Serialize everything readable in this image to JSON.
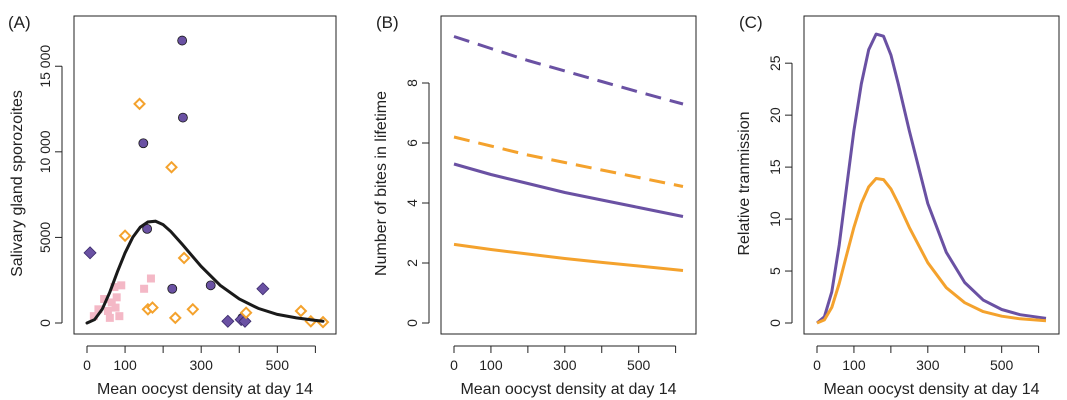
{
  "colors": {
    "purple": "#6a51a3",
    "orange": "#f4a22d",
    "pink": "#f4b8c6",
    "black": "#1a1a1a"
  },
  "chart_data": [
    {
      "type": "scatter",
      "panel": "(A)",
      "xlabel": "Mean oocyst density at day 14",
      "ylabel": "Salivary gland sporozoites",
      "xlim": [
        0,
        620
      ],
      "ylim": [
        0,
        17000
      ],
      "xticks": [
        0,
        100,
        300,
        500
      ],
      "xtick_labels": [
        "0",
        "100",
        "300",
        "500"
      ],
      "x_minor_ticks": [
        200,
        400,
        600
      ],
      "yticks": [
        0,
        5000,
        10000,
        15000
      ],
      "ytick_labels": [
        "0",
        "5000",
        "10 000",
        "15 000"
      ],
      "series": [
        {
          "marker": "circle",
          "color": "purple",
          "points": [
            [
              158,
              5500
            ],
            [
              148,
              10500
            ],
            [
              250,
              16500
            ],
            [
              252,
              12000
            ],
            [
              224,
              2000
            ],
            [
              325,
              2200
            ],
            [
              408,
              300
            ]
          ]
        },
        {
          "marker": "diamond",
          "color": "purple",
          "points": [
            [
              8,
              4100
            ],
            [
              370,
              100
            ],
            [
              405,
              200
            ],
            [
              415,
              100
            ],
            [
              462,
              2000
            ]
          ]
        },
        {
          "marker": "open-diamond",
          "color": "orange",
          "points": [
            [
              100,
              5100
            ],
            [
              138,
              12800
            ],
            [
              222,
              9100
            ],
            [
              255,
              3800
            ],
            [
              278,
              800
            ],
            [
              160,
              800
            ],
            [
              172,
              900
            ],
            [
              232,
              300
            ],
            [
              418,
              600
            ],
            [
              562,
              700
            ],
            [
              588,
              100
            ],
            [
              620,
              50
            ]
          ]
        },
        {
          "marker": "square",
          "color": "pink",
          "points": [
            [
              18,
              400
            ],
            [
              30,
              800
            ],
            [
              45,
              1400
            ],
            [
              55,
              700
            ],
            [
              65,
              1200
            ],
            [
              72,
              2100
            ],
            [
              78,
              1500
            ],
            [
              85,
              400
            ],
            [
              90,
              2200
            ],
            [
              150,
              2000
            ],
            [
              168,
              2600
            ],
            [
              60,
              300
            ],
            [
              75,
              900
            ]
          ]
        },
        {
          "marker": "line",
          "color": "black",
          "points": [
            [
              0,
              0
            ],
            [
              20,
              200
            ],
            [
              40,
              800
            ],
            [
              60,
              1800
            ],
            [
              80,
              3000
            ],
            [
              100,
              4100
            ],
            [
              120,
              5000
            ],
            [
              140,
              5600
            ],
            [
              160,
              5900
            ],
            [
              180,
              5950
            ],
            [
              200,
              5750
            ],
            [
              220,
              5350
            ],
            [
              250,
              4600
            ],
            [
              300,
              3300
            ],
            [
              350,
              2200
            ],
            [
              400,
              1400
            ],
            [
              450,
              850
            ],
            [
              500,
              500
            ],
            [
              550,
              300
            ],
            [
              600,
              150
            ],
            [
              620,
              100
            ]
          ]
        }
      ]
    },
    {
      "type": "line",
      "panel": "(B)",
      "xlabel": "Mean oocyst density at day 14",
      "ylabel": "Number of bites in lifetime",
      "xlim": [
        0,
        620
      ],
      "ylim": [
        0,
        9.7
      ],
      "xticks": [
        0,
        100,
        300,
        500
      ],
      "xtick_labels": [
        "0",
        "100",
        "300",
        "500"
      ],
      "x_minor_ticks": [
        200,
        400,
        600
      ],
      "yticks": [
        0,
        2,
        4,
        6,
        8
      ],
      "ytick_labels": [
        "0",
        "2",
        "4",
        "6",
        "8"
      ],
      "series": [
        {
          "color": "purple",
          "dash": true,
          "x": [
            0,
            100,
            200,
            300,
            400,
            500,
            620
          ],
          "values": [
            9.55,
            9.15,
            8.75,
            8.4,
            8.05,
            7.7,
            7.3
          ]
        },
        {
          "color": "orange",
          "dash": true,
          "x": [
            0,
            100,
            200,
            300,
            400,
            500,
            620
          ],
          "values": [
            6.2,
            5.9,
            5.6,
            5.35,
            5.1,
            4.85,
            4.55
          ]
        },
        {
          "color": "purple",
          "dash": false,
          "x": [
            0,
            100,
            200,
            300,
            400,
            500,
            620
          ],
          "values": [
            5.3,
            4.95,
            4.65,
            4.35,
            4.1,
            3.85,
            3.55
          ]
        },
        {
          "color": "orange",
          "dash": false,
          "x": [
            0,
            100,
            200,
            300,
            400,
            500,
            620
          ],
          "values": [
            2.62,
            2.45,
            2.3,
            2.15,
            2.02,
            1.9,
            1.75
          ]
        }
      ]
    },
    {
      "type": "line",
      "panel": "(C)",
      "xlabel": "Mean oocyst density at day 14",
      "ylabel": "Relative tranmission",
      "xlim": [
        0,
        620
      ],
      "ylim": [
        0,
        28
      ],
      "xticks": [
        0,
        100,
        300,
        500
      ],
      "xtick_labels": [
        "0",
        "100",
        "300",
        "500"
      ],
      "x_minor_ticks": [
        200,
        400,
        600
      ],
      "yticks": [
        0,
        5,
        10,
        15,
        20,
        25
      ],
      "ytick_labels": [
        "0",
        "5",
        "10",
        "15",
        "20",
        "25"
      ],
      "series": [
        {
          "color": "purple",
          "dash": false,
          "x": [
            0,
            20,
            40,
            60,
            80,
            100,
            120,
            140,
            160,
            180,
            200,
            220,
            250,
            300,
            350,
            400,
            450,
            500,
            550,
            620
          ],
          "values": [
            0,
            0.6,
            3.0,
            7.5,
            13.0,
            18.5,
            23.0,
            26.3,
            27.8,
            27.6,
            25.8,
            23.0,
            18.5,
            11.5,
            6.8,
            3.9,
            2.2,
            1.3,
            0.8,
            0.45
          ]
        },
        {
          "color": "orange",
          "dash": false,
          "x": [
            0,
            20,
            40,
            60,
            80,
            100,
            120,
            140,
            160,
            180,
            200,
            220,
            250,
            300,
            350,
            400,
            450,
            500,
            550,
            620
          ],
          "values": [
            0,
            0.3,
            1.5,
            3.8,
            6.5,
            9.2,
            11.5,
            13.1,
            13.9,
            13.8,
            12.9,
            11.5,
            9.2,
            5.8,
            3.4,
            1.95,
            1.1,
            0.65,
            0.4,
            0.22
          ]
        }
      ]
    }
  ]
}
